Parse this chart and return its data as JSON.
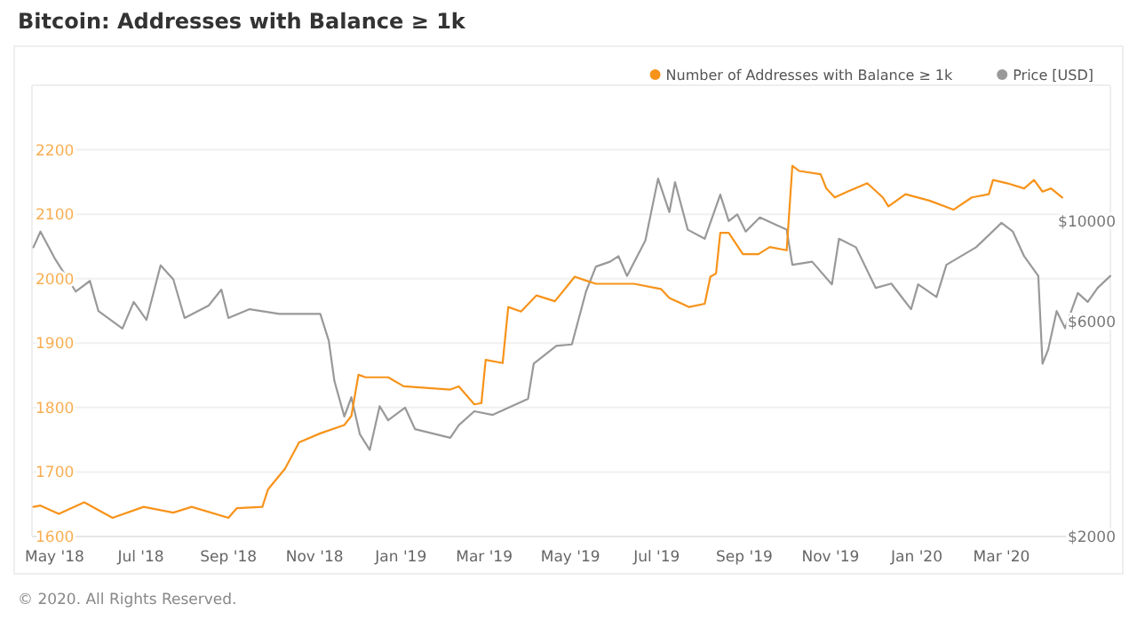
{
  "chart_data": {
    "type": "line",
    "title": "Bitcoin: Addresses with Balance ≥ 1k",
    "series": [
      {
        "name": "Number of Addresses with Balance ≥ 1k",
        "color": "#f7931a",
        "x": [
          "2018-04-16",
          "2018-04-21",
          "2018-05-04",
          "2018-05-22",
          "2018-06-11",
          "2018-07-03",
          "2018-07-24",
          "2018-08-06",
          "2018-09-01",
          "2018-09-07",
          "2018-09-25",
          "2018-09-29",
          "2018-10-11",
          "2018-10-21",
          "2018-11-05",
          "2018-11-22",
          "2018-11-27",
          "2018-12-02",
          "2018-12-07",
          "2018-12-23",
          "2019-01-03",
          "2019-02-05",
          "2019-02-11",
          "2019-02-22",
          "2019-02-27",
          "2019-03-02",
          "2019-03-14",
          "2019-03-18",
          "2019-03-27",
          "2019-04-07",
          "2019-04-20",
          "2019-04-30",
          "2019-05-04",
          "2019-05-12",
          "2019-05-19",
          "2019-06-15",
          "2019-07-04",
          "2019-07-10",
          "2019-07-24",
          "2019-08-04",
          "2019-08-08",
          "2019-08-12",
          "2019-08-15",
          "2019-08-21",
          "2019-08-31",
          "2019-09-11",
          "2019-09-19",
          "2019-10-01",
          "2019-10-05",
          "2019-10-10",
          "2019-10-25",
          "2019-10-29",
          "2019-11-04",
          "2019-11-13",
          "2019-11-27",
          "2019-12-08",
          "2019-12-12",
          "2019-12-24",
          "2020-01-10",
          "2020-01-27",
          "2020-02-09",
          "2020-02-21",
          "2020-02-24",
          "2020-03-05",
          "2020-03-17",
          "2020-03-24",
          "2020-03-30",
          "2020-04-05",
          "2020-04-13"
        ],
        "values": [
          1646,
          1648,
          1635,
          1653,
          1629,
          1646,
          1637,
          1646,
          1629,
          1644,
          1646,
          1673,
          1705,
          1746,
          1760,
          1773,
          1787,
          1851,
          1847,
          1847,
          1833,
          1828,
          1833,
          1805,
          1807,
          1874,
          1869,
          1956,
          1949,
          1974,
          1965,
          1992,
          2003,
          1997,
          1992,
          1992,
          1984,
          1970,
          1956,
          1961,
          2003,
          2008,
          2071,
          2071,
          2038,
          2038,
          2049,
          2044,
          2175,
          2167,
          2162,
          2140,
          2126,
          2135,
          2148,
          2126,
          2112,
          2131,
          2121,
          2107,
          2126,
          2131,
          2153,
          2148,
          2140,
          2153,
          2135,
          2140,
          2126
        ]
      },
      {
        "name": "Price [USD]",
        "color": "#999999",
        "axis": "y2",
        "x": [
          "2018-04-16",
          "2018-04-21",
          "2018-05-01",
          "2018-05-16",
          "2018-05-26",
          "2018-06-01",
          "2018-06-18",
          "2018-06-26",
          "2018-07-05",
          "2018-07-15",
          "2018-07-24",
          "2018-08-01",
          "2018-08-18",
          "2018-08-27",
          "2018-09-01",
          "2018-09-16",
          "2018-10-07",
          "2018-11-05",
          "2018-11-11",
          "2018-11-15",
          "2018-11-22",
          "2018-11-27",
          "2018-12-03",
          "2018-12-10",
          "2018-12-17",
          "2018-12-23",
          "2019-01-04",
          "2019-01-11",
          "2019-02-05",
          "2019-02-11",
          "2019-02-22",
          "2019-03-07",
          "2019-04-01",
          "2019-04-05",
          "2019-04-21",
          "2019-05-02",
          "2019-05-12",
          "2019-05-19",
          "2019-05-29",
          "2019-06-04",
          "2019-06-10",
          "2019-06-23",
          "2019-07-02",
          "2019-07-10",
          "2019-07-14",
          "2019-07-23",
          "2019-08-04",
          "2019-08-15",
          "2019-08-21",
          "2019-08-27",
          "2019-09-02",
          "2019-09-12",
          "2019-10-01",
          "2019-10-05",
          "2019-10-19",
          "2019-11-02",
          "2019-11-07",
          "2019-11-19",
          "2019-12-03",
          "2019-12-14",
          "2019-12-28",
          "2020-01-02",
          "2020-01-15",
          "2020-01-22",
          "2020-02-12",
          "2020-03-01",
          "2020-03-09",
          "2020-03-17",
          "2020-03-27",
          "2020-03-30",
          "2020-04-03",
          "2020-04-09",
          "2020-04-15",
          "2020-04-24",
          "2020-05-01",
          "2020-05-08",
          "2020-05-17"
        ],
        "values": [
          8750,
          9480,
          8280,
          6980,
          7370,
          6320,
          5780,
          6620,
          6040,
          7980,
          7430,
          6100,
          6500,
          7050,
          6100,
          6380,
          6230,
          6230,
          5430,
          4420,
          3690,
          4070,
          3370,
          3110,
          3890,
          3620,
          3860,
          3460,
          3310,
          3530,
          3790,
          3720,
          4040,
          4830,
          5290,
          5330,
          6980,
          7930,
          8130,
          8360,
          7560,
          9060,
          12420,
          10470,
          12200,
          9570,
          9140,
          11450,
          10000,
          10350,
          9480,
          10190,
          9570,
          8000,
          8130,
          7240,
          9140,
          8750,
          7110,
          7270,
          6380,
          7240,
          6790,
          8000,
          8750,
          9910,
          9480,
          8360,
          7560,
          4830,
          5190,
          6320,
          5790,
          6930,
          6620,
          7110,
          7560
        ]
      }
    ],
    "xlim": [
      "2018-04-15",
      "2020-05-17"
    ],
    "xticks": [
      {
        "value": "2018-05-01",
        "label": "May '18"
      },
      {
        "value": "2018-07-01",
        "label": "Jul '18"
      },
      {
        "value": "2018-09-01",
        "label": "Sep '18"
      },
      {
        "value": "2018-11-01",
        "label": "Nov '18"
      },
      {
        "value": "2019-01-01",
        "label": "Jan '19"
      },
      {
        "value": "2019-03-01",
        "label": "Mar '19"
      },
      {
        "value": "2019-05-01",
        "label": "May '19"
      },
      {
        "value": "2019-07-01",
        "label": "Jul '19"
      },
      {
        "value": "2019-09-01",
        "label": "Sep '19"
      },
      {
        "value": "2019-11-01",
        "label": "Nov '19"
      },
      {
        "value": "2020-01-01",
        "label": "Jan '20"
      },
      {
        "value": "2020-03-01",
        "label": "Mar '20"
      }
    ],
    "ylim": [
      1600,
      2300
    ],
    "yticks": [
      1600,
      1700,
      1800,
      1900,
      2000,
      2100,
      2200
    ],
    "y2lim": [
      2000,
      20000
    ],
    "y2ticks": [
      {
        "value": 2000,
        "label": "$2000"
      },
      {
        "value": 6000,
        "label": "$6000"
      },
      {
        "value": 10000,
        "label": "$10000"
      }
    ],
    "log": "y2",
    "grid": "y",
    "legend": "top right",
    "marker": "none",
    "line_style": "solid",
    "annotations": [
      "© 2020. All Rights Reserved."
    ]
  }
}
